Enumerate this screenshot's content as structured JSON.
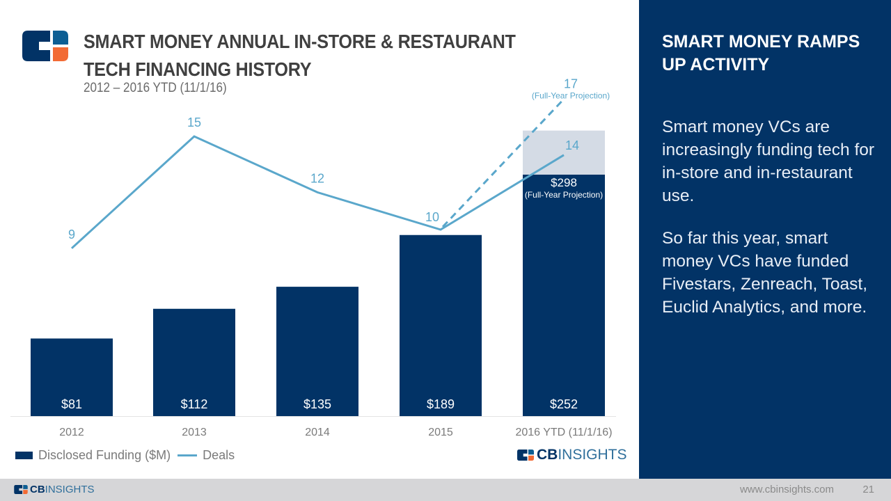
{
  "header": {
    "title_line1": "SMART MONEY ANNUAL IN-STORE & RESTAURANT",
    "title_line2": "TECH FINANCING HISTORY",
    "subtitle": "2012 – 2016 YTD (11/1/16)",
    "logo_icon": "cb-insights-mark-icon"
  },
  "sidebar": {
    "title": "SMART MONEY RAMPS UP ACTIVITY",
    "paragraph1": "Smart money VCs are increasingly funding tech for in-store and in-restaurant use.",
    "paragraph2": "So far this year, smart money VCs have funded Fivestars, Zenreach, Toast, Euclid Analytics, and more."
  },
  "legend": {
    "bar_label": "Disclosed Funding ($M)",
    "line_label": "Deals"
  },
  "brand": {
    "cb": "CB",
    "insights": "INSIGHTS"
  },
  "footer": {
    "url": "www.cbinsights.com",
    "page_number": "21"
  },
  "colors": {
    "bar": "#023366",
    "projection_bar": "#d4dbe5",
    "line": "#5aa7cb",
    "sidebar_bg": "#023366",
    "accent_orange": "#f26b35"
  },
  "chart_data": {
    "type": "bar",
    "title": "SMART MONEY ANNUAL IN-STORE & RESTAURANT TECH FINANCING HISTORY",
    "subtitle": "2012 – 2016 YTD (11/1/16)",
    "categories": [
      "2012",
      "2013",
      "2014",
      "2015",
      "2016 YTD (11/1/16)"
    ],
    "series": [
      {
        "name": "Disclosed Funding ($M)",
        "type": "bar",
        "values": [
          81,
          112,
          135,
          189,
          252
        ],
        "labels": [
          "$81",
          "$112",
          "$135",
          "$189",
          "$252"
        ]
      },
      {
        "name": "Deals",
        "type": "line",
        "values": [
          9,
          15,
          12,
          10,
          14
        ],
        "labels": [
          "9",
          "15",
          "12",
          "10",
          "14"
        ]
      }
    ],
    "projections": {
      "funding": {
        "category": "2016 YTD (11/1/16)",
        "value": 298,
        "label": "$298",
        "note": "(Full-Year Projection)"
      },
      "deals": {
        "category": "2016 YTD (11/1/16)",
        "from": 10,
        "value": 17,
        "label": "17",
        "note": "(Full-Year Projection)"
      }
    },
    "legend_position": "bottom-left",
    "grid": false,
    "xlabel": "",
    "ylabel": ""
  }
}
